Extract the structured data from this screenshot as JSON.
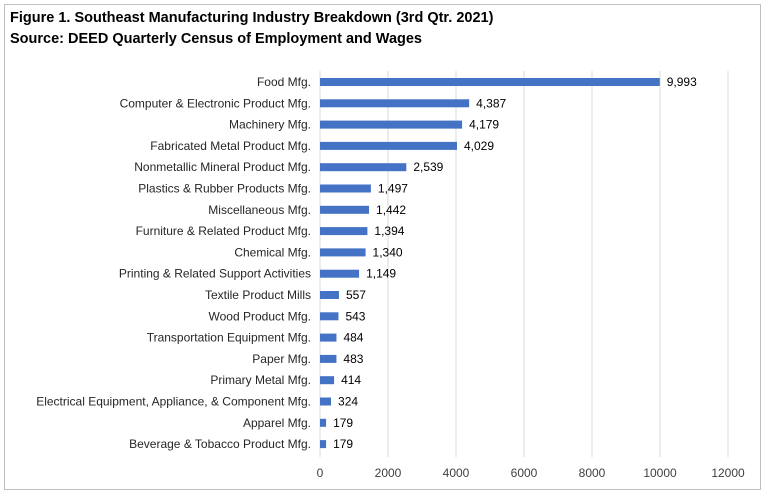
{
  "chart_data": {
    "type": "bar",
    "orientation": "horizontal",
    "title": "Figure 1. Southeast Manufacturing Industry Breakdown (3rd Qtr. 2021)",
    "subtitle": "Source: DEED Quarterly Census of Employment and Wages",
    "categories": [
      "Food Mfg.",
      "Computer & Electronic Product Mfg.",
      "Machinery Mfg.",
      "Fabricated Metal Product Mfg.",
      "Nonmetallic Mineral Product Mfg.",
      "Plastics & Rubber Products Mfg.",
      "Miscellaneous Mfg.",
      "Furniture & Related Product Mfg.",
      "Chemical Mfg.",
      "Printing & Related Support Activities",
      "Textile Product Mills",
      "Wood Product Mfg.",
      "Transportation Equipment Mfg.",
      "Paper Mfg.",
      "Primary Metal Mfg.",
      "Electrical Equipment, Appliance, & Component Mfg.",
      "Apparel Mfg.",
      "Beverage & Tobacco Product Mfg."
    ],
    "values": [
      9993,
      4387,
      4179,
      4029,
      2539,
      1497,
      1442,
      1394,
      1340,
      1149,
      557,
      543,
      484,
      483,
      414,
      324,
      179,
      179
    ],
    "value_labels": [
      "9,993",
      "4,387",
      "4,179",
      "4,029",
      "2,539",
      "1,497",
      "1,442",
      "1,394",
      "1,340",
      "1,149",
      "557",
      "543",
      "484",
      "483",
      "414",
      "324",
      "179",
      "179"
    ],
    "xlim": [
      0,
      12000
    ],
    "xticks": [
      0,
      2000,
      4000,
      6000,
      8000,
      10000,
      12000
    ],
    "xtick_labels": [
      "0",
      "2000",
      "4000",
      "6000",
      "8000",
      "10000",
      "12000"
    ],
    "grid": "vertical",
    "bar_color": "#4472c4",
    "grid_color": "#d9d9d9"
  }
}
